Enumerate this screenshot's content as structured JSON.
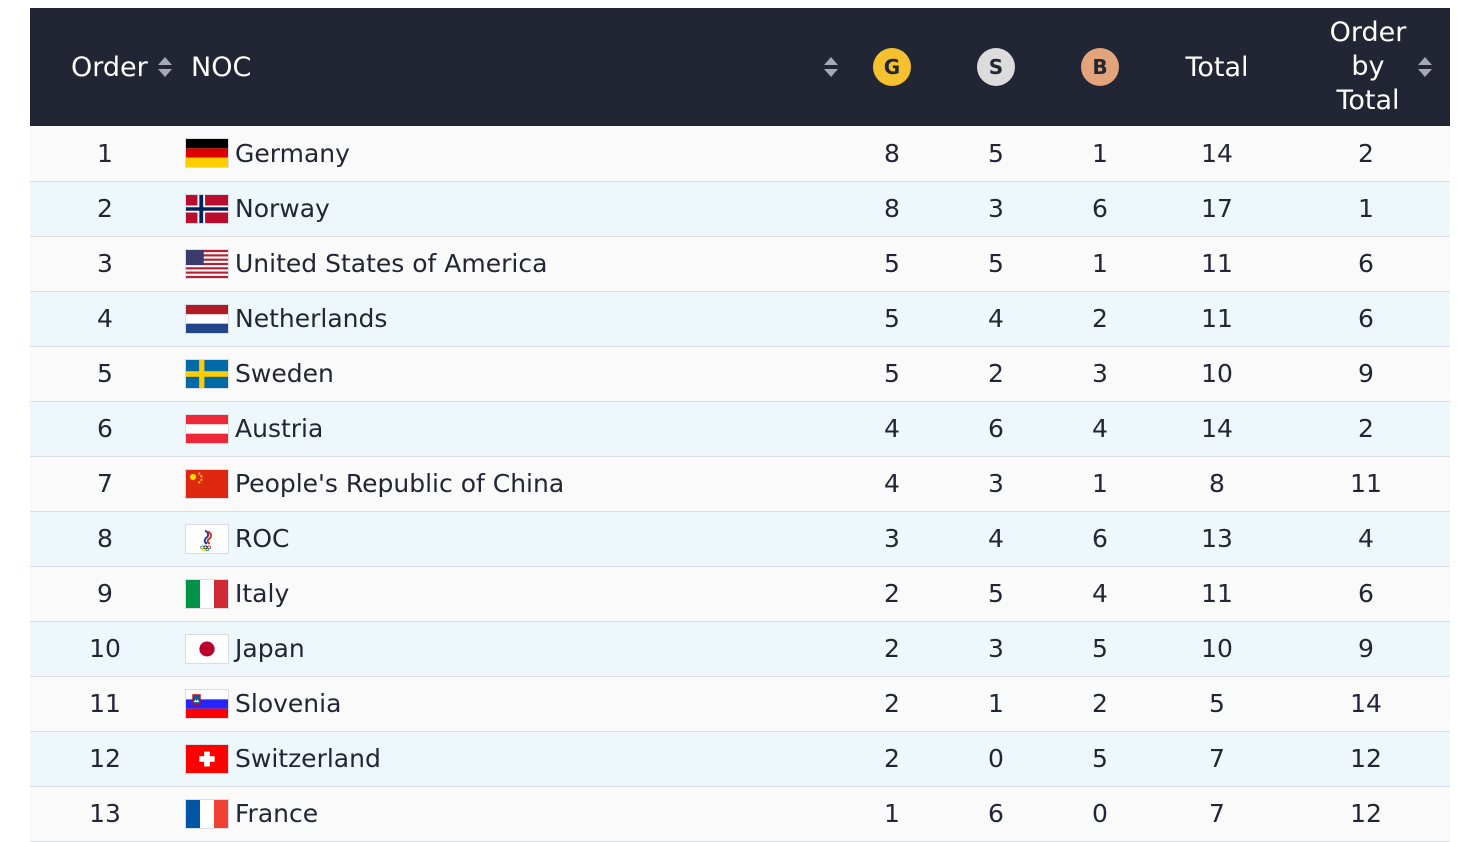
{
  "table": {
    "headers": {
      "order": "Order",
      "noc": "NOC",
      "gold": "G",
      "silver": "S",
      "bronze": "B",
      "total": "Total",
      "order_by_total_line1": "Order",
      "order_by_total_line2": "by",
      "order_by_total_line3": "Total"
    },
    "medal_colors": {
      "gold": "#f5c12e",
      "silver": "#dcdcdc",
      "bronze": "#e3a37b"
    },
    "header_bg": "#222634",
    "rows": [
      {
        "order": "1",
        "country": "Germany",
        "flag": "germany-flag-icon",
        "g": "8",
        "s": "5",
        "b": "1",
        "total": "14",
        "order_by_total": "2"
      },
      {
        "order": "2",
        "country": "Norway",
        "flag": "norway-flag-icon",
        "g": "8",
        "s": "3",
        "b": "6",
        "total": "17",
        "order_by_total": "1"
      },
      {
        "order": "3",
        "country": "United States of America",
        "flag": "usa-flag-icon",
        "g": "5",
        "s": "5",
        "b": "1",
        "total": "11",
        "order_by_total": "6"
      },
      {
        "order": "4",
        "country": "Netherlands",
        "flag": "netherlands-flag-icon",
        "g": "5",
        "s": "4",
        "b": "2",
        "total": "11",
        "order_by_total": "6"
      },
      {
        "order": "5",
        "country": "Sweden",
        "flag": "sweden-flag-icon",
        "g": "5",
        "s": "2",
        "b": "3",
        "total": "10",
        "order_by_total": "9"
      },
      {
        "order": "6",
        "country": "Austria",
        "flag": "austria-flag-icon",
        "g": "4",
        "s": "6",
        "b": "4",
        "total": "14",
        "order_by_total": "2"
      },
      {
        "order": "7",
        "country": "People's Republic of China",
        "flag": "china-flag-icon",
        "g": "4",
        "s": "3",
        "b": "1",
        "total": "8",
        "order_by_total": "11"
      },
      {
        "order": "8",
        "country": "ROC",
        "flag": "roc-flag-icon",
        "g": "3",
        "s": "4",
        "b": "6",
        "total": "13",
        "order_by_total": "4"
      },
      {
        "order": "9",
        "country": "Italy",
        "flag": "italy-flag-icon",
        "g": "2",
        "s": "5",
        "b": "4",
        "total": "11",
        "order_by_total": "6"
      },
      {
        "order": "10",
        "country": "Japan",
        "flag": "japan-flag-icon",
        "g": "2",
        "s": "3",
        "b": "5",
        "total": "10",
        "order_by_total": "9"
      },
      {
        "order": "11",
        "country": "Slovenia",
        "flag": "slovenia-flag-icon",
        "g": "2",
        "s": "1",
        "b": "2",
        "total": "5",
        "order_by_total": "14"
      },
      {
        "order": "12",
        "country": "Switzerland",
        "flag": "switzerland-flag-icon",
        "g": "2",
        "s": "0",
        "b": "5",
        "total": "7",
        "order_by_total": "12"
      },
      {
        "order": "13",
        "country": "France",
        "flag": "france-flag-icon",
        "g": "1",
        "s": "6",
        "b": "0",
        "total": "7",
        "order_by_total": "12"
      }
    ]
  }
}
